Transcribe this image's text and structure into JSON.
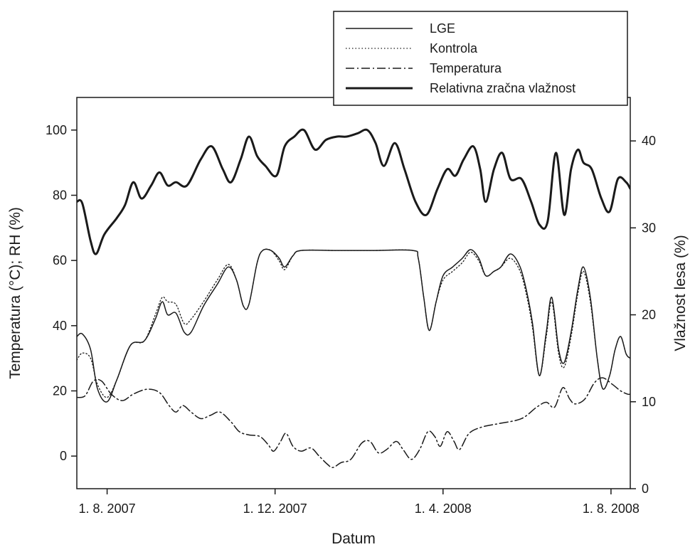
{
  "chart_data": {
    "type": "line",
    "title": "",
    "xlabel": "Datum",
    "ylabel_left": "Temperatura (°C); RH (%)",
    "ylabel_right": "Vlažnost lesa (%)",
    "x_ticks": [
      "1. 8. 2007",
      "1. 12. 2007",
      "1. 4. 2008",
      "1. 8. 2008"
    ],
    "xlim": [
      "2007-07-10",
      "2008-08-15"
    ],
    "ylim_left": [
      -10,
      110
    ],
    "ylim_right": [
      0,
      45
    ],
    "y_ticks_left": [
      0,
      20,
      40,
      60,
      80,
      100
    ],
    "y_ticks_right": [
      0,
      10,
      20,
      30,
      40
    ],
    "grid": false,
    "legend_position": "top-right, outside plot area",
    "series": [
      {
        "name": "LGE",
        "axis": "right",
        "style": "solid",
        "points": [
          [
            "2007-07-10",
            17.5
          ],
          [
            "2007-07-14",
            17.8
          ],
          [
            "2007-07-20",
            16.0
          ],
          [
            "2007-07-25",
            11.5
          ],
          [
            "2007-08-01",
            10.0
          ],
          [
            "2007-08-08",
            12.5
          ],
          [
            "2007-08-18",
            16.5
          ],
          [
            "2007-08-28",
            17.0
          ],
          [
            "2007-09-05",
            19.5
          ],
          [
            "2007-09-10",
            21.5
          ],
          [
            "2007-09-14",
            20.0
          ],
          [
            "2007-09-20",
            20.2
          ],
          [
            "2007-09-26",
            18.0
          ],
          [
            "2007-10-01",
            18.0
          ],
          [
            "2007-10-10",
            21.0
          ],
          [
            "2007-10-20",
            23.5
          ],
          [
            "2007-10-28",
            25.5
          ],
          [
            "2007-11-03",
            24.0
          ],
          [
            "2007-11-08",
            21.0
          ],
          [
            "2007-11-12",
            21.2
          ],
          [
            "2007-11-18",
            26.0
          ],
          [
            "2007-11-22",
            27.4
          ],
          [
            "2007-11-28",
            27.4
          ],
          [
            "2007-12-04",
            26.5
          ],
          [
            "2007-12-08",
            25.5
          ],
          [
            "2007-12-14",
            26.8
          ],
          [
            "2007-12-20",
            27.4
          ],
          [
            "2008-01-15",
            27.4
          ],
          [
            "2008-02-10",
            27.4
          ],
          [
            "2008-03-10",
            27.4
          ],
          [
            "2008-03-14",
            26.5
          ],
          [
            "2008-03-18",
            22.0
          ],
          [
            "2008-03-22",
            18.2
          ],
          [
            "2008-03-27",
            21.5
          ],
          [
            "2008-04-01",
            24.5
          ],
          [
            "2008-04-08",
            25.5
          ],
          [
            "2008-04-15",
            26.5
          ],
          [
            "2008-04-21",
            27.5
          ],
          [
            "2008-04-27",
            26.5
          ],
          [
            "2008-05-02",
            24.5
          ],
          [
            "2008-05-08",
            25.0
          ],
          [
            "2008-05-13",
            25.5
          ],
          [
            "2008-05-20",
            27.0
          ],
          [
            "2008-05-27",
            25.5
          ],
          [
            "2008-06-01",
            22.5
          ],
          [
            "2008-06-05",
            19.0
          ],
          [
            "2008-06-10",
            13.0
          ],
          [
            "2008-06-15",
            18.0
          ],
          [
            "2008-06-19",
            22.0
          ],
          [
            "2008-06-24",
            16.0
          ],
          [
            "2008-06-28",
            14.5
          ],
          [
            "2008-07-03",
            18.0
          ],
          [
            "2008-07-08",
            23.0
          ],
          [
            "2008-07-12",
            25.5
          ],
          [
            "2008-07-17",
            22.0
          ],
          [
            "2008-07-22",
            15.0
          ],
          [
            "2008-07-26",
            11.5
          ],
          [
            "2008-07-31",
            13.0
          ],
          [
            "2008-08-04",
            16.0
          ],
          [
            "2008-08-08",
            17.5
          ],
          [
            "2008-08-12",
            15.5
          ],
          [
            "2008-08-15",
            15.0
          ]
        ]
      },
      {
        "name": "Kontrola",
        "axis": "right",
        "style": "dotted",
        "points": [
          [
            "2007-07-10",
            14.8
          ],
          [
            "2007-07-14",
            15.6
          ],
          [
            "2007-07-20",
            15.0
          ],
          [
            "2007-07-25",
            12.0
          ],
          [
            "2007-08-01",
            10.5
          ],
          [
            "2007-08-08",
            12.5
          ],
          [
            "2007-08-18",
            16.5
          ],
          [
            "2007-08-28",
            17.0
          ],
          [
            "2007-09-05",
            20.0
          ],
          [
            "2007-09-10",
            22.0
          ],
          [
            "2007-09-14",
            21.5
          ],
          [
            "2007-09-20",
            21.2
          ],
          [
            "2007-09-26",
            19.0
          ],
          [
            "2007-10-01",
            19.5
          ],
          [
            "2007-10-10",
            21.5
          ],
          [
            "2007-10-20",
            24.0
          ],
          [
            "2007-10-28",
            25.8
          ],
          [
            "2007-11-03",
            24.0
          ],
          [
            "2007-11-08",
            21.0
          ],
          [
            "2007-11-12",
            21.2
          ],
          [
            "2007-11-18",
            26.0
          ],
          [
            "2007-11-22",
            27.4
          ],
          [
            "2007-11-28",
            27.4
          ],
          [
            "2007-12-04",
            26.2
          ],
          [
            "2007-12-08",
            25.2
          ],
          [
            "2007-12-14",
            26.8
          ],
          [
            "2007-12-20",
            27.4
          ],
          [
            "2008-01-15",
            27.4
          ],
          [
            "2008-02-10",
            27.4
          ],
          [
            "2008-03-10",
            27.4
          ],
          [
            "2008-03-14",
            26.5
          ],
          [
            "2008-03-18",
            22.0
          ],
          [
            "2008-03-22",
            18.2
          ],
          [
            "2008-03-27",
            21.5
          ],
          [
            "2008-04-01",
            24.0
          ],
          [
            "2008-04-08",
            25.0
          ],
          [
            "2008-04-15",
            26.0
          ],
          [
            "2008-04-21",
            27.2
          ],
          [
            "2008-04-27",
            26.2
          ],
          [
            "2008-05-02",
            24.5
          ],
          [
            "2008-05-08",
            25.0
          ],
          [
            "2008-05-13",
            25.5
          ],
          [
            "2008-05-20",
            26.5
          ],
          [
            "2008-05-27",
            25.0
          ],
          [
            "2008-06-01",
            22.0
          ],
          [
            "2008-06-05",
            18.5
          ],
          [
            "2008-06-10",
            13.0
          ],
          [
            "2008-06-15",
            17.5
          ],
          [
            "2008-06-19",
            21.5
          ],
          [
            "2008-06-24",
            15.5
          ],
          [
            "2008-06-28",
            14.0
          ],
          [
            "2008-07-03",
            17.5
          ],
          [
            "2008-07-08",
            22.5
          ],
          [
            "2008-07-12",
            25.0
          ],
          [
            "2008-07-17",
            21.5
          ],
          [
            "2008-07-22",
            15.0
          ],
          [
            "2008-07-26",
            11.5
          ],
          [
            "2008-07-31",
            13.0
          ],
          [
            "2008-08-04",
            16.0
          ],
          [
            "2008-08-08",
            17.5
          ],
          [
            "2008-08-12",
            15.5
          ],
          [
            "2008-08-15",
            15.0
          ]
        ]
      },
      {
        "name": "Temperatura",
        "axis": "left",
        "style": "dash-dot",
        "points": [
          [
            "2007-07-10",
            18.0
          ],
          [
            "2007-07-16",
            18.5
          ],
          [
            "2007-07-22",
            23.0
          ],
          [
            "2007-07-28",
            23.0
          ],
          [
            "2007-08-04",
            19.0
          ],
          [
            "2007-08-12",
            17.0
          ],
          [
            "2007-08-20",
            19.0
          ],
          [
            "2007-08-30",
            20.5
          ],
          [
            "2007-09-08",
            19.5
          ],
          [
            "2007-09-15",
            15.5
          ],
          [
            "2007-09-20",
            13.5
          ],
          [
            "2007-09-25",
            15.5
          ],
          [
            "2007-10-01",
            13.5
          ],
          [
            "2007-10-08",
            11.5
          ],
          [
            "2007-10-15",
            12.5
          ],
          [
            "2007-10-22",
            13.5
          ],
          [
            "2007-10-30",
            10.5
          ],
          [
            "2007-11-05",
            7.5
          ],
          [
            "2007-11-12",
            6.5
          ],
          [
            "2007-11-20",
            6.0
          ],
          [
            "2007-11-26",
            3.5
          ],
          [
            "2007-11-30",
            1.5
          ],
          [
            "2007-12-05",
            4.5
          ],
          [
            "2007-12-09",
            7.0
          ],
          [
            "2007-12-14",
            3.0
          ],
          [
            "2007-12-20",
            1.5
          ],
          [
            "2007-12-27",
            2.5
          ],
          [
            "2008-01-02",
            0.0
          ],
          [
            "2008-01-08",
            -2.5
          ],
          [
            "2008-01-12",
            -3.5
          ],
          [
            "2008-01-18",
            -2.0
          ],
          [
            "2008-01-25",
            -1.0
          ],
          [
            "2008-02-02",
            4.0
          ],
          [
            "2008-02-08",
            4.5
          ],
          [
            "2008-02-14",
            1.0
          ],
          [
            "2008-02-20",
            2.0
          ],
          [
            "2008-02-27",
            4.5
          ],
          [
            "2008-03-03",
            2.0
          ],
          [
            "2008-03-09",
            -1.0
          ],
          [
            "2008-03-15",
            2.0
          ],
          [
            "2008-03-21",
            7.5
          ],
          [
            "2008-03-26",
            6.0
          ],
          [
            "2008-03-30",
            3.0
          ],
          [
            "2008-04-04",
            7.5
          ],
          [
            "2008-04-09",
            4.5
          ],
          [
            "2008-04-13",
            2.0
          ],
          [
            "2008-04-20",
            7.0
          ],
          [
            "2008-04-30",
            9.0
          ],
          [
            "2008-05-12",
            10.0
          ],
          [
            "2008-05-28",
            11.5
          ],
          [
            "2008-06-08",
            15.0
          ],
          [
            "2008-06-15",
            16.5
          ],
          [
            "2008-06-21",
            15.0
          ],
          [
            "2008-06-27",
            21.0
          ],
          [
            "2008-07-02",
            17.5
          ],
          [
            "2008-07-06",
            16.0
          ],
          [
            "2008-07-13",
            17.5
          ],
          [
            "2008-07-20",
            22.5
          ],
          [
            "2008-07-26",
            24.0
          ],
          [
            "2008-08-02",
            22.0
          ],
          [
            "2008-08-08",
            20.0
          ],
          [
            "2008-08-13",
            19.0
          ],
          [
            "2008-08-15",
            19.0
          ]
        ]
      },
      {
        "name": "Relativna zračna vlažnost",
        "axis": "left",
        "style": "thick-solid",
        "points": [
          [
            "2007-07-10",
            78.0
          ],
          [
            "2007-07-14",
            77.5
          ],
          [
            "2007-07-20",
            66.0
          ],
          [
            "2007-07-24",
            62.0
          ],
          [
            "2007-07-30",
            68.0
          ],
          [
            "2007-08-08",
            73.0
          ],
          [
            "2007-08-14",
            77.0
          ],
          [
            "2007-08-20",
            84.0
          ],
          [
            "2007-08-26",
            79.0
          ],
          [
            "2007-09-02",
            83.0
          ],
          [
            "2007-09-08",
            87.0
          ],
          [
            "2007-09-14",
            83.0
          ],
          [
            "2007-09-20",
            84.0
          ],
          [
            "2007-09-28",
            83.0
          ],
          [
            "2007-10-08",
            91.0
          ],
          [
            "2007-10-16",
            95.0
          ],
          [
            "2007-10-24",
            88.0
          ],
          [
            "2007-10-30",
            84.0
          ],
          [
            "2007-11-06",
            91.0
          ],
          [
            "2007-11-12",
            98.0
          ],
          [
            "2007-11-18",
            92.0
          ],
          [
            "2007-11-24",
            89.0
          ],
          [
            "2007-12-02",
            86.0
          ],
          [
            "2007-12-08",
            95.0
          ],
          [
            "2007-12-15",
            98.0
          ],
          [
            "2007-12-22",
            100.0
          ],
          [
            "2007-12-30",
            94.0
          ],
          [
            "2008-01-07",
            97.0
          ],
          [
            "2008-01-15",
            98.0
          ],
          [
            "2008-01-22",
            98.0
          ],
          [
            "2008-01-30",
            99.0
          ],
          [
            "2008-02-06",
            100.0
          ],
          [
            "2008-02-12",
            96.0
          ],
          [
            "2008-02-18",
            89.0
          ],
          [
            "2008-02-26",
            96.0
          ],
          [
            "2008-03-04",
            88.0
          ],
          [
            "2008-03-12",
            78.0
          ],
          [
            "2008-03-20",
            74.0
          ],
          [
            "2008-03-28",
            82.0
          ],
          [
            "2008-04-04",
            88.0
          ],
          [
            "2008-04-10",
            86.0
          ],
          [
            "2008-04-16",
            91.0
          ],
          [
            "2008-04-23",
            95.0
          ],
          [
            "2008-04-28",
            88.0
          ],
          [
            "2008-05-02",
            78.0
          ],
          [
            "2008-05-08",
            88.0
          ],
          [
            "2008-05-14",
            93.0
          ],
          [
            "2008-05-20",
            85.0
          ],
          [
            "2008-05-28",
            85.0
          ],
          [
            "2008-06-04",
            78.0
          ],
          [
            "2008-06-10",
            71.0
          ],
          [
            "2008-06-16",
            72.0
          ],
          [
            "2008-06-22",
            93.0
          ],
          [
            "2008-06-28",
            74.0
          ],
          [
            "2008-07-03",
            88.0
          ],
          [
            "2008-07-08",
            94.0
          ],
          [
            "2008-07-12",
            90.0
          ],
          [
            "2008-07-18",
            88.0
          ],
          [
            "2008-07-25",
            79.0
          ],
          [
            "2008-07-31",
            75.0
          ],
          [
            "2008-08-06",
            85.0
          ],
          [
            "2008-08-12",
            84.0
          ],
          [
            "2008-08-15",
            82.0
          ]
        ]
      }
    ]
  }
}
